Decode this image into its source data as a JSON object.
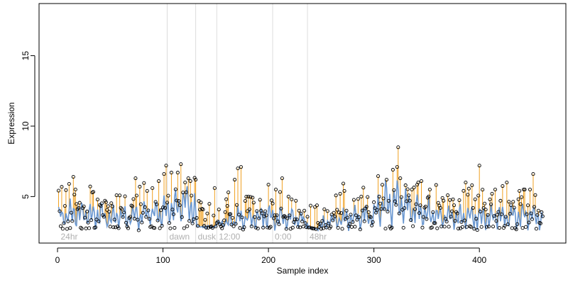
{
  "chart_data": {
    "type": "scatter",
    "xlabel": "Sample index",
    "ylabel": "Expression",
    "xlim": [
      -17.5,
      482
    ],
    "ylim": [
      1.7,
      18.7
    ],
    "x_ticks": [
      0,
      100,
      200,
      300,
      400
    ],
    "y_ticks": [
      5,
      10,
      15
    ],
    "grid": false,
    "legend": "none",
    "sections": [
      {
        "x": 104,
        "label": "dawn"
      },
      {
        "x": 131,
        "label": "dusk"
      },
      {
        "x": 151,
        "label": "12:00"
      },
      {
        "x": 204,
        "label": "0:00"
      },
      {
        "x": 237,
        "label": "48hr"
      }
    ],
    "start_label": "24hr",
    "start_label_x": 1,
    "line_color": "#6a97d0",
    "spike_color": "#f0a020",
    "n_points": 460,
    "baseline": [
      [
        0,
        3.5
      ],
      [
        10,
        3.7
      ],
      [
        20,
        3.8
      ],
      [
        30,
        3.7
      ],
      [
        40,
        3.6
      ],
      [
        50,
        3.5
      ],
      [
        60,
        3.6
      ],
      [
        70,
        3.7
      ],
      [
        80,
        3.7
      ],
      [
        90,
        3.8
      ],
      [
        100,
        3.9
      ],
      [
        105,
        4.0
      ],
      [
        110,
        4.2
      ],
      [
        115,
        4.3
      ],
      [
        120,
        4.5
      ],
      [
        125,
        4.4
      ],
      [
        130,
        4.3
      ],
      [
        132,
        3.0
      ],
      [
        140,
        2.9
      ],
      [
        150,
        3.0
      ],
      [
        160,
        3.2
      ],
      [
        170,
        3.4
      ],
      [
        180,
        3.5
      ],
      [
        190,
        3.5
      ],
      [
        200,
        3.6
      ],
      [
        210,
        3.5
      ],
      [
        220,
        3.5
      ],
      [
        230,
        3.4
      ],
      [
        237,
        3.1
      ],
      [
        240,
        2.9
      ],
      [
        250,
        3.0
      ],
      [
        260,
        3.2
      ],
      [
        270,
        3.4
      ],
      [
        280,
        3.5
      ],
      [
        290,
        3.6
      ],
      [
        300,
        3.7
      ],
      [
        305,
        4.2
      ],
      [
        310,
        4.6
      ],
      [
        320,
        4.7
      ],
      [
        325,
        4.5
      ],
      [
        330,
        4.3
      ],
      [
        340,
        4.0
      ],
      [
        350,
        3.8
      ],
      [
        360,
        3.6
      ],
      [
        370,
        3.6
      ],
      [
        380,
        3.6
      ],
      [
        390,
        3.5
      ],
      [
        400,
        3.5
      ],
      [
        410,
        3.5
      ],
      [
        420,
        3.6
      ],
      [
        430,
        3.6
      ],
      [
        440,
        3.6
      ],
      [
        450,
        3.5
      ],
      [
        460,
        3.3
      ]
    ],
    "peaks": [
      [
        11,
        5.9
      ],
      [
        15,
        6.4
      ],
      [
        17,
        5.5
      ],
      [
        25,
        4.3
      ],
      [
        40,
        4.4
      ],
      [
        52,
        4.3
      ],
      [
        60,
        4.2
      ],
      [
        74,
        6.3
      ],
      [
        78,
        5.7
      ],
      [
        85,
        5.4
      ],
      [
        90,
        5.6
      ],
      [
        96,
        6.1
      ],
      [
        101,
        6.6
      ],
      [
        103,
        7.2
      ],
      [
        108,
        6.7
      ],
      [
        114,
        6.7
      ],
      [
        117,
        7.3
      ],
      [
        121,
        6.0
      ],
      [
        124,
        6.3
      ],
      [
        126,
        6.1
      ],
      [
        131,
        6.2
      ],
      [
        149,
        5.6
      ],
      [
        162,
        5.3
      ],
      [
        168,
        6.2
      ],
      [
        171,
        7.0
      ],
      [
        174,
        7.1
      ],
      [
        181,
        5.0
      ],
      [
        193,
        4.0
      ],
      [
        207,
        5.5
      ],
      [
        213,
        6.3
      ],
      [
        219,
        5.0
      ],
      [
        222,
        4.8
      ],
      [
        229,
        4.0
      ],
      [
        234,
        4.0
      ],
      [
        253,
        4.1
      ],
      [
        268,
        5.2
      ],
      [
        272,
        5.4
      ],
      [
        288,
        5.0
      ],
      [
        300,
        4.6
      ],
      [
        305,
        5.0
      ],
      [
        312,
        6.2
      ],
      [
        318,
        6.9
      ],
      [
        322,
        7.1
      ],
      [
        323,
        8.5
      ],
      [
        325,
        6.3
      ],
      [
        330,
        5.8
      ],
      [
        336,
        5.5
      ],
      [
        342,
        6.0
      ],
      [
        345,
        6.1
      ],
      [
        353,
        5.5
      ],
      [
        365,
        4.9
      ],
      [
        375,
        4.8
      ],
      [
        387,
        6.0
      ],
      [
        400,
        7.2
      ],
      [
        405,
        4.5
      ],
      [
        412,
        5.2
      ],
      [
        420,
        4.7
      ],
      [
        426,
        6.0
      ],
      [
        438,
        5.4
      ],
      [
        443,
        5.5
      ],
      [
        448,
        5.5
      ],
      [
        451,
        6.6
      ],
      [
        456,
        4.0
      ],
      [
        460,
        3.6
      ]
    ]
  }
}
